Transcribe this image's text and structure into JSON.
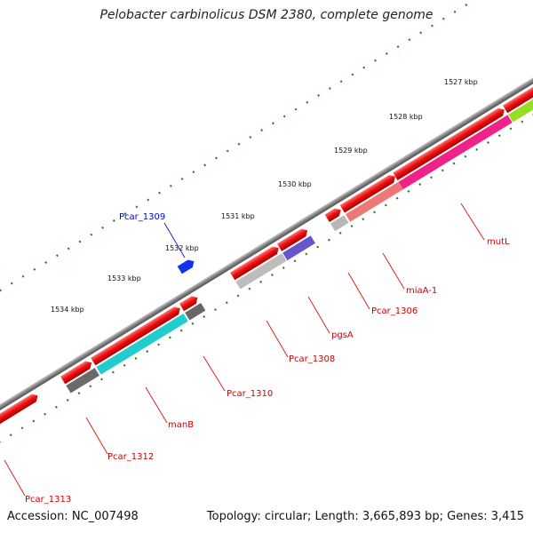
{
  "title": "Pelobacter carbinolicus DSM 2380, complete genome",
  "footer": {
    "accession": "Accession: NC_007498",
    "summary": "Topology: circular; Length: 3,665,893 bp; Genes: 3,415"
  },
  "ticks": [
    "1527 kbp",
    "1528 kbp",
    "1529 kbp",
    "1530 kbp",
    "1531 kbp",
    "1532 kbp",
    "1533 kbp",
    "1534 kbp"
  ],
  "gene_labels": [
    {
      "id": "mutL",
      "text": "mutL",
      "color": "#cc0000"
    },
    {
      "id": "miaA",
      "text": "miaA-1",
      "color": "#cc0000"
    },
    {
      "id": "pcar1306",
      "text": "Pcar_1306",
      "color": "#cc0000"
    },
    {
      "id": "pgsA",
      "text": "pgsA",
      "color": "#cc0000"
    },
    {
      "id": "pcar1308",
      "text": "Pcar_1308",
      "color": "#cc0000"
    },
    {
      "id": "pcar1309",
      "text": "Pcar_1309",
      "color": "#0000cc"
    },
    {
      "id": "pcar1310",
      "text": "Pcar_1310",
      "color": "#cc0000"
    },
    {
      "id": "manB",
      "text": "manB",
      "color": "#cc0000"
    },
    {
      "id": "pcar1312",
      "text": "Pcar_1312",
      "color": "#cc0000"
    },
    {
      "id": "pcar1313",
      "text": "Pcar_1313",
      "color": "#cc0000"
    }
  ],
  "colors": {
    "gene_red": "#ee1111",
    "backbone": "#808080",
    "tick_green": "#2d7a1f",
    "cyan": "#22cccc",
    "magenta": "#ee2288",
    "salmon": "#ee7777",
    "violet": "#6655cc",
    "lime": "#99dd22",
    "blue": "#1133ee",
    "grey_dark": "#666666",
    "grey_light": "#b8b8b8"
  }
}
